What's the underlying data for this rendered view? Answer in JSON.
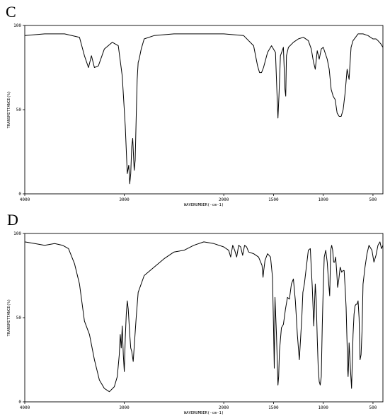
{
  "chart_data": [
    {
      "panel": "C",
      "type": "line",
      "xlabel": "WAVENUMBER(-cm-1)",
      "ylabel": "TRANSMITTANCE(%)",
      "xlim": [
        4000,
        400
      ],
      "ylim": [
        0,
        100
      ],
      "x_ticks": [
        "4000",
        "3000",
        "2000",
        "1500",
        "1000",
        "500"
      ],
      "x_tick_values": [
        4000,
        3000,
        2000,
        1500,
        1000,
        500
      ],
      "y_ticks": [
        "100",
        "50",
        "0"
      ],
      "y_tick_values": [
        100,
        50,
        0
      ],
      "series": [
        {
          "x": [
            4000,
            3800,
            3600,
            3450,
            3400,
            3360,
            3330,
            3300,
            3260,
            3200,
            3120,
            3060,
            3020,
            2990,
            2970,
            2955,
            2945,
            2935,
            2925,
            2915,
            2900,
            2890,
            2880,
            2870,
            2860,
            2850,
            2830,
            2800,
            2700,
            2500,
            2300,
            2000,
            1800,
            1700,
            1660,
            1640,
            1620,
            1600,
            1560,
            1520,
            1480,
            1465,
            1455,
            1445,
            1430,
            1400,
            1385,
            1377,
            1370,
            1350,
            1300,
            1250,
            1200,
            1150,
            1120,
            1100,
            1080,
            1060,
            1040,
            1020,
            1000,
            960,
            940,
            920,
            900,
            880,
            860,
            840,
            820,
            800,
            780,
            760,
            740,
            730,
            720,
            700,
            650,
            600,
            550,
            500,
            470,
            450,
            420,
            400
          ],
          "y": [
            94,
            95,
            95,
            93,
            82,
            75,
            82,
            75,
            76,
            86,
            90,
            88,
            70,
            40,
            12,
            17,
            6,
            12,
            28,
            33,
            14,
            20,
            45,
            68,
            78,
            80,
            86,
            92,
            94,
            95,
            95,
            95,
            94,
            88,
            76,
            72,
            72,
            75,
            84,
            88,
            84,
            60,
            45,
            58,
            82,
            87,
            62,
            58,
            82,
            87,
            90,
            92,
            93,
            91,
            86,
            79,
            74,
            85,
            80,
            86,
            87,
            80,
            74,
            62,
            58,
            56,
            48,
            46,
            46,
            50,
            60,
            74,
            68,
            78,
            87,
            91,
            95,
            95,
            94,
            92,
            92,
            91,
            89,
            87
          ]
        }
      ]
    },
    {
      "panel": "D",
      "type": "line",
      "xlabel": "WAVENUMBER(-cm-1)",
      "ylabel": "TRANSMITTANCE(%)",
      "xlim": [
        4000,
        400
      ],
      "ylim": [
        0,
        100
      ],
      "x_ticks": [
        "4000",
        "3000",
        "2000",
        "1500",
        "1000",
        "500"
      ],
      "x_tick_values": [
        4000,
        3000,
        2000,
        1500,
        1000,
        500
      ],
      "y_ticks": [
        "100",
        "50",
        "0"
      ],
      "y_tick_values": [
        100,
        50,
        0
      ],
      "series": [
        {
          "x": [
            4000,
            3900,
            3800,
            3700,
            3620,
            3560,
            3500,
            3450,
            3400,
            3350,
            3300,
            3250,
            3200,
            3150,
            3100,
            3070,
            3050,
            3040,
            3030,
            3020,
            3010,
            3000,
            2990,
            2980,
            2970,
            2960,
            2945,
            2935,
            2925,
            2910,
            2880,
            2860,
            2800,
            2700,
            2600,
            2500,
            2400,
            2300,
            2200,
            2100,
            2000,
            1950,
            1930,
            1910,
            1890,
            1870,
            1850,
            1830,
            1810,
            1790,
            1770,
            1750,
            1700,
            1650,
            1615,
            1605,
            1598,
            1585,
            1560,
            1530,
            1510,
            1500,
            1492,
            1485,
            1470,
            1455,
            1448,
            1440,
            1420,
            1400,
            1380,
            1360,
            1340,
            1320,
            1300,
            1280,
            1260,
            1240,
            1225,
            1215,
            1205,
            1190,
            1170,
            1150,
            1130,
            1110,
            1095,
            1080,
            1070,
            1060,
            1050,
            1040,
            1030,
            1020,
            1010,
            1000,
            990,
            975,
            960,
            945,
            935,
            925,
            915,
            905,
            895,
            885,
            875,
            865,
            855,
            845,
            830,
            815,
            800,
            790,
            780,
            770,
            760,
            755,
            750,
            745,
            740,
            735,
            725,
            715,
            700,
            690,
            680,
            670,
            660,
            650,
            640,
            630,
            620,
            610,
            600,
            590,
            580,
            560,
            540,
            510,
            490,
            470,
            450,
            430,
            415,
            400
          ],
          "y": [
            95,
            94,
            93,
            94,
            93,
            91,
            82,
            70,
            48,
            40,
            25,
            13,
            8,
            6,
            9,
            15,
            28,
            40,
            32,
            45,
            28,
            18,
            38,
            52,
            60,
            55,
            40,
            32,
            30,
            24,
            50,
            65,
            75,
            80,
            85,
            89,
            90,
            93,
            95,
            94,
            92,
            90,
            86,
            93,
            90,
            86,
            93,
            92,
            87,
            93,
            92,
            89,
            88,
            86,
            81,
            74,
            78,
            84,
            88,
            86,
            74,
            45,
            20,
            62,
            40,
            10,
            15,
            30,
            44,
            46,
            55,
            62,
            61,
            70,
            73,
            60,
            40,
            25,
            40,
            50,
            65,
            70,
            80,
            90,
            91,
            68,
            45,
            70,
            60,
            38,
            20,
            12,
            10,
            15,
            45,
            68,
            86,
            90,
            83,
            70,
            63,
            90,
            93,
            90,
            83,
            83,
            86,
            78,
            68,
            72,
            80,
            77,
            78,
            78,
            68,
            56,
            34,
            20,
            15,
            22,
            35,
            30,
            18,
            8,
            40,
            52,
            57,
            58,
            58,
            60,
            50,
            25,
            28,
            42,
            70,
            75,
            80,
            88,
            93,
            90,
            83,
            87,
            93,
            95,
            91,
            93
          ]
        }
      ]
    }
  ]
}
